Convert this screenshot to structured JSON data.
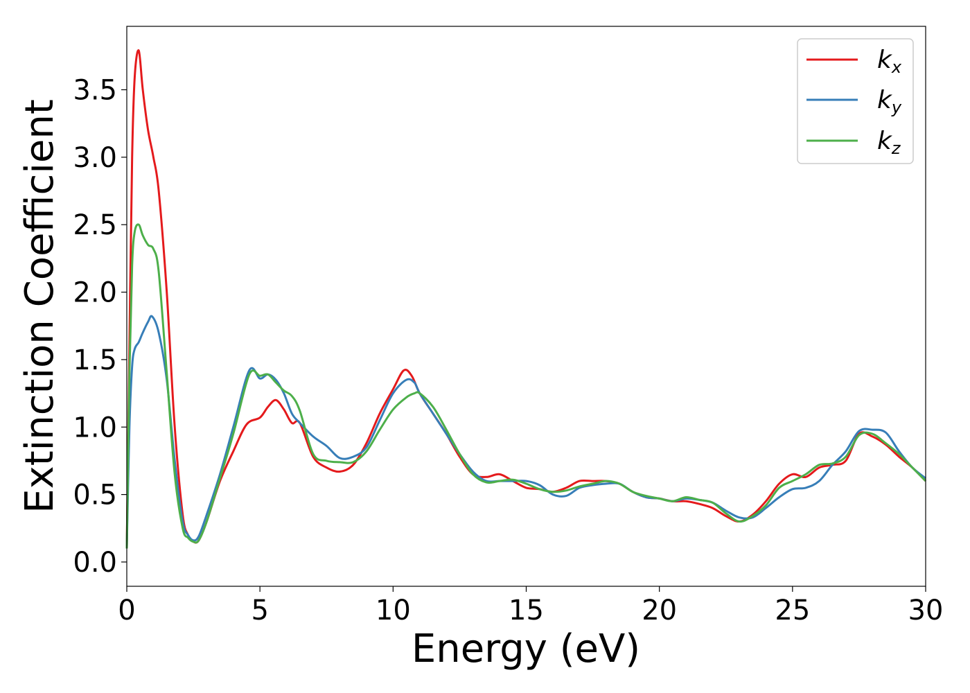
{
  "chart_data": {
    "type": "line",
    "title": "",
    "xlabel": "Energy (eV)",
    "ylabel": "Extinction Coefficient",
    "xlim": [
      0,
      30
    ],
    "ylim": [
      -0.18,
      3.97
    ],
    "xticks": [
      0,
      5,
      10,
      15,
      20,
      25,
      30
    ],
    "xtick_labels": [
      "0",
      "5",
      "10",
      "15",
      "20",
      "25",
      "30"
    ],
    "yticks": [
      0.0,
      0.5,
      1.0,
      1.5,
      2.0,
      2.5,
      3.0,
      3.5
    ],
    "ytick_labels": [
      "0.0",
      "0.5",
      "1.0",
      "1.5",
      "2.0",
      "2.5",
      "3.0",
      "3.5"
    ],
    "grid": false,
    "legend_position": "top-right",
    "series": [
      {
        "name": "kx",
        "label_main": "k",
        "label_sub": "x",
        "color": "#e41a1c",
        "x": [
          0,
          0.1,
          0.2,
          0.3,
          0.45,
          0.6,
          0.8,
          1.0,
          1.2,
          1.5,
          1.8,
          2.1,
          2.3,
          2.5,
          2.7,
          3.0,
          3.5,
          4.0,
          4.5,
          5.0,
          5.3,
          5.6,
          5.9,
          6.2,
          6.5,
          7.0,
          7.5,
          8.0,
          8.5,
          9.0,
          9.5,
          10.0,
          10.4,
          10.7,
          11.0,
          11.5,
          12.0,
          12.5,
          13.0,
          13.5,
          14.0,
          14.5,
          15.0,
          15.5,
          16.0,
          16.5,
          17.0,
          17.5,
          18.0,
          18.5,
          19.0,
          19.5,
          20.0,
          20.5,
          21.0,
          21.5,
          22.0,
          22.5,
          23.0,
          23.5,
          24.0,
          24.5,
          25.0,
          25.5,
          26.0,
          26.5,
          27.0,
          27.5,
          28.0,
          28.5,
          29.0,
          29.5,
          30.0
        ],
        "y": [
          0.1,
          1.6,
          3.0,
          3.6,
          3.79,
          3.5,
          3.2,
          3.0,
          2.75,
          2.0,
          1.0,
          0.35,
          0.2,
          0.15,
          0.16,
          0.3,
          0.6,
          0.82,
          1.02,
          1.07,
          1.15,
          1.2,
          1.13,
          1.03,
          1.03,
          0.78,
          0.7,
          0.67,
          0.72,
          0.88,
          1.1,
          1.28,
          1.42,
          1.38,
          1.25,
          1.1,
          0.95,
          0.78,
          0.65,
          0.63,
          0.65,
          0.6,
          0.55,
          0.54,
          0.52,
          0.55,
          0.6,
          0.6,
          0.6,
          0.58,
          0.52,
          0.48,
          0.47,
          0.45,
          0.45,
          0.43,
          0.4,
          0.34,
          0.3,
          0.35,
          0.45,
          0.58,
          0.65,
          0.63,
          0.7,
          0.72,
          0.75,
          0.95,
          0.93,
          0.87,
          0.78,
          0.7,
          0.6
        ]
      },
      {
        "name": "ky",
        "label_main": "k",
        "label_sub": "y",
        "color": "#377eb8",
        "x": [
          0,
          0.1,
          0.2,
          0.3,
          0.45,
          0.6,
          0.8,
          0.95,
          1.2,
          1.5,
          1.8,
          2.1,
          2.3,
          2.5,
          2.7,
          3.0,
          3.5,
          4.0,
          4.6,
          5.0,
          5.3,
          5.6,
          5.9,
          6.2,
          6.5,
          7.0,
          7.5,
          8.0,
          8.5,
          9.0,
          9.5,
          10.0,
          10.5,
          10.8,
          11.0,
          11.5,
          12.0,
          12.5,
          13.0,
          13.5,
          14.0,
          14.5,
          15.0,
          15.5,
          16.0,
          16.5,
          17.0,
          17.5,
          18.0,
          18.5,
          19.0,
          19.5,
          20.0,
          20.5,
          21.0,
          21.5,
          22.0,
          22.5,
          23.0,
          23.5,
          24.0,
          24.5,
          25.0,
          25.5,
          26.0,
          26.5,
          27.0,
          27.5,
          28.0,
          28.5,
          29.0,
          29.5,
          30.0
        ],
        "y": [
          0.1,
          1.0,
          1.45,
          1.58,
          1.63,
          1.7,
          1.78,
          1.82,
          1.7,
          1.35,
          0.75,
          0.3,
          0.2,
          0.16,
          0.19,
          0.35,
          0.65,
          1.0,
          1.42,
          1.36,
          1.39,
          1.35,
          1.25,
          1.1,
          1.03,
          0.93,
          0.86,
          0.77,
          0.78,
          0.85,
          1.05,
          1.25,
          1.35,
          1.33,
          1.25,
          1.1,
          0.95,
          0.8,
          0.67,
          0.6,
          0.6,
          0.6,
          0.6,
          0.57,
          0.5,
          0.49,
          0.55,
          0.57,
          0.58,
          0.58,
          0.52,
          0.48,
          0.47,
          0.45,
          0.47,
          0.46,
          0.44,
          0.38,
          0.33,
          0.33,
          0.4,
          0.48,
          0.54,
          0.55,
          0.6,
          0.72,
          0.82,
          0.97,
          0.98,
          0.96,
          0.82,
          0.7,
          0.62
        ]
      },
      {
        "name": "kz",
        "label_main": "k",
        "label_sub": "z",
        "color": "#4daf4a",
        "x": [
          0,
          0.1,
          0.2,
          0.3,
          0.45,
          0.6,
          0.8,
          1.0,
          1.2,
          1.5,
          1.8,
          2.1,
          2.3,
          2.5,
          2.7,
          3.0,
          3.5,
          4.0,
          4.6,
          5.0,
          5.3,
          5.6,
          5.9,
          6.2,
          6.5,
          7.0,
          7.5,
          8.0,
          8.5,
          9.0,
          9.5,
          10.0,
          10.5,
          10.8,
          11.0,
          11.5,
          12.0,
          12.5,
          13.0,
          13.5,
          14.0,
          14.5,
          15.0,
          15.5,
          16.0,
          16.5,
          17.0,
          17.5,
          18.0,
          18.5,
          19.0,
          19.5,
          20.0,
          20.5,
          21.0,
          21.5,
          22.0,
          22.5,
          23.0,
          23.5,
          24.0,
          24.5,
          25.0,
          25.5,
          26.0,
          26.5,
          27.0,
          27.5,
          28.0,
          28.5,
          29.0,
          29.5,
          30.0
        ],
        "y": [
          0.1,
          1.4,
          2.2,
          2.45,
          2.5,
          2.42,
          2.35,
          2.32,
          2.15,
          1.4,
          0.65,
          0.25,
          0.18,
          0.15,
          0.16,
          0.3,
          0.62,
          0.95,
          1.39,
          1.38,
          1.39,
          1.33,
          1.27,
          1.23,
          1.12,
          0.8,
          0.75,
          0.74,
          0.74,
          0.82,
          0.98,
          1.13,
          1.22,
          1.25,
          1.25,
          1.15,
          0.98,
          0.8,
          0.65,
          0.59,
          0.6,
          0.61,
          0.58,
          0.54,
          0.52,
          0.53,
          0.56,
          0.58,
          0.6,
          0.58,
          0.52,
          0.49,
          0.47,
          0.45,
          0.48,
          0.46,
          0.44,
          0.36,
          0.3,
          0.34,
          0.42,
          0.55,
          0.6,
          0.65,
          0.72,
          0.73,
          0.78,
          0.94,
          0.95,
          0.88,
          0.8,
          0.7,
          0.6
        ]
      }
    ]
  }
}
